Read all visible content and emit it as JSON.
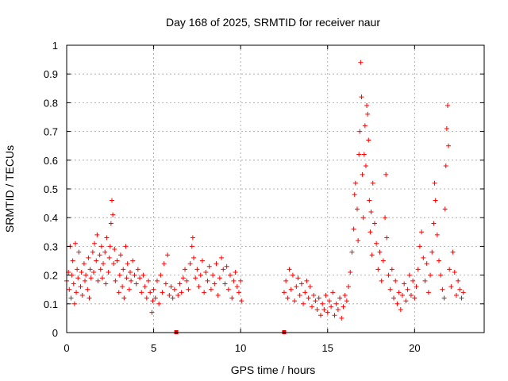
{
  "chart_data": {
    "type": "scatter",
    "title": "Day 168 of 2025, SRMTID for receiver naur",
    "xlabel": "GPS time / hours",
    "ylabel": "SRMTID / TECUs",
    "xlim": [
      0,
      24
    ],
    "ylim": [
      0,
      1
    ],
    "xticks": [
      "0",
      "5",
      "10",
      "15",
      "20"
    ],
    "xtick_values": [
      0,
      5,
      10,
      15,
      20
    ],
    "yticks": [
      "0",
      "0.1",
      "0.2",
      "0.3",
      "0.4",
      "0.5",
      "0.6",
      "0.7",
      "0.8",
      "0.9",
      "1"
    ],
    "ytick_values": [
      0,
      0.1,
      0.2,
      0.3,
      0.4,
      0.5,
      0.6,
      0.7,
      0.8,
      0.9,
      1.0
    ],
    "grid": true,
    "marker": "+",
    "color": "#ff0000",
    "zero_markers": [
      {
        "x": 6.3,
        "y": 0
      },
      {
        "x": 12.5,
        "y": 0
      }
    ],
    "series": [
      {
        "name": "SRMTID",
        "points": [
          [
            0.0,
            0.18
          ],
          [
            0.1,
            0.21
          ],
          [
            0.15,
            0.15
          ],
          [
            0.2,
            0.3
          ],
          [
            0.25,
            0.12
          ],
          [
            0.3,
            0.2
          ],
          [
            0.35,
            0.25
          ],
          [
            0.4,
            0.17
          ],
          [
            0.45,
            0.1
          ],
          [
            0.5,
            0.31
          ],
          [
            0.55,
            0.14
          ],
          [
            0.6,
            0.22
          ],
          [
            0.65,
            0.19
          ],
          [
            0.7,
            0.28
          ],
          [
            0.8,
            0.16
          ],
          [
            0.85,
            0.21
          ],
          [
            0.9,
            0.13
          ],
          [
            1.0,
            0.24
          ],
          [
            1.05,
            0.18
          ],
          [
            1.1,
            0.2
          ],
          [
            1.2,
            0.15
          ],
          [
            1.25,
            0.26
          ],
          [
            1.3,
            0.12
          ],
          [
            1.35,
            0.22
          ],
          [
            1.4,
            0.19
          ],
          [
            1.5,
            0.28
          ],
          [
            1.55,
            0.21
          ],
          [
            1.6,
            0.31
          ],
          [
            1.7,
            0.25
          ],
          [
            1.75,
            0.34
          ],
          [
            1.8,
            0.18
          ],
          [
            1.9,
            0.27
          ],
          [
            1.95,
            0.22
          ],
          [
            2.0,
            0.3
          ],
          [
            2.05,
            0.19
          ],
          [
            2.1,
            0.24
          ],
          [
            2.2,
            0.28
          ],
          [
            2.25,
            0.17
          ],
          [
            2.3,
            0.33
          ],
          [
            2.4,
            0.21
          ],
          [
            2.45,
            0.26
          ],
          [
            2.5,
            0.3
          ],
          [
            2.55,
            0.38
          ],
          [
            2.6,
            0.46
          ],
          [
            2.65,
            0.41
          ],
          [
            2.7,
            0.24
          ],
          [
            2.75,
            0.29
          ],
          [
            2.8,
            0.18
          ],
          [
            2.9,
            0.25
          ],
          [
            3.0,
            0.14
          ],
          [
            3.05,
            0.2
          ],
          [
            3.1,
            0.27
          ],
          [
            3.2,
            0.16
          ],
          [
            3.25,
            0.22
          ],
          [
            3.3,
            0.12
          ],
          [
            3.4,
            0.3
          ],
          [
            3.45,
            0.19
          ],
          [
            3.5,
            0.24
          ],
          [
            3.6,
            0.15
          ],
          [
            3.65,
            0.21
          ],
          [
            3.7,
            0.18
          ],
          [
            3.8,
            0.25
          ],
          [
            3.9,
            0.2
          ],
          [
            4.0,
            0.17
          ],
          [
            4.1,
            0.22
          ],
          [
            4.2,
            0.19
          ],
          [
            4.3,
            0.14
          ],
          [
            4.4,
            0.2
          ],
          [
            4.5,
            0.16
          ],
          [
            4.6,
            0.12
          ],
          [
            4.7,
            0.18
          ],
          [
            4.8,
            0.14
          ],
          [
            4.9,
            0.07
          ],
          [
            4.95,
            0.11
          ],
          [
            5.0,
            0.15
          ],
          [
            5.1,
            0.12
          ],
          [
            5.2,
            0.18
          ],
          [
            5.3,
            0.1
          ],
          [
            5.4,
            0.2
          ],
          [
            5.5,
            0.14
          ],
          [
            5.6,
            0.24
          ],
          [
            5.7,
            0.17
          ],
          [
            5.8,
            0.27
          ],
          [
            5.9,
            0.13
          ],
          [
            6.0,
            0.16
          ],
          [
            6.1,
            0.12
          ],
          [
            6.2,
            0.15
          ],
          [
            6.4,
            0.13
          ],
          [
            6.5,
            0.17
          ],
          [
            6.6,
            0.14
          ],
          [
            6.7,
            0.19
          ],
          [
            6.8,
            0.22
          ],
          [
            6.9,
            0.18
          ],
          [
            7.0,
            0.15
          ],
          [
            7.1,
            0.24
          ],
          [
            7.2,
            0.3
          ],
          [
            7.25,
            0.33
          ],
          [
            7.3,
            0.26
          ],
          [
            7.4,
            0.19
          ],
          [
            7.5,
            0.22
          ],
          [
            7.6,
            0.16
          ],
          [
            7.7,
            0.2
          ],
          [
            7.8,
            0.25
          ],
          [
            7.9,
            0.14
          ],
          [
            8.0,
            0.21
          ],
          [
            8.1,
            0.18
          ],
          [
            8.2,
            0.23
          ],
          [
            8.3,
            0.15
          ],
          [
            8.4,
            0.2
          ],
          [
            8.5,
            0.17
          ],
          [
            8.6,
            0.24
          ],
          [
            8.7,
            0.13
          ],
          [
            8.8,
            0.19
          ],
          [
            8.9,
            0.26
          ],
          [
            9.0,
            0.22
          ],
          [
            9.1,
            0.17
          ],
          [
            9.2,
            0.23
          ],
          [
            9.3,
            0.15
          ],
          [
            9.4,
            0.2
          ],
          [
            9.5,
            0.12
          ],
          [
            9.6,
            0.18
          ],
          [
            9.7,
            0.21
          ],
          [
            9.8,
            0.16
          ],
          [
            9.9,
            0.14
          ],
          [
            10.0,
            0.18
          ],
          [
            10.05,
            0.11
          ],
          [
            12.5,
            0.14
          ],
          [
            12.6,
            0.18
          ],
          [
            12.7,
            0.12
          ],
          [
            12.8,
            0.22
          ],
          [
            12.9,
            0.15
          ],
          [
            13.0,
            0.2
          ],
          [
            13.1,
            0.11
          ],
          [
            13.2,
            0.16
          ],
          [
            13.3,
            0.19
          ],
          [
            13.4,
            0.13
          ],
          [
            13.5,
            0.17
          ],
          [
            13.6,
            0.1
          ],
          [
            13.7,
            0.14
          ],
          [
            13.8,
            0.18
          ],
          [
            13.9,
            0.12
          ],
          [
            14.0,
            0.16
          ],
          [
            14.1,
            0.09
          ],
          [
            14.2,
            0.13
          ],
          [
            14.3,
            0.11
          ],
          [
            14.4,
            0.08
          ],
          [
            14.5,
            0.12
          ],
          [
            14.6,
            0.06
          ],
          [
            14.7,
            0.1
          ],
          [
            14.8,
            0.08
          ],
          [
            14.9,
            0.13
          ],
          [
            15.0,
            0.07
          ],
          [
            15.1,
            0.11
          ],
          [
            15.2,
            0.09
          ],
          [
            15.3,
            0.14
          ],
          [
            15.4,
            0.06
          ],
          [
            15.5,
            0.1
          ],
          [
            15.6,
            0.08
          ],
          [
            15.7,
            0.12
          ],
          [
            15.8,
            0.05
          ],
          [
            15.9,
            0.09
          ],
          [
            16.0,
            0.13
          ],
          [
            16.1,
            0.11
          ],
          [
            16.2,
            0.16
          ],
          [
            16.3,
            0.21
          ],
          [
            16.4,
            0.28
          ],
          [
            16.5,
            0.36
          ],
          [
            16.55,
            0.48
          ],
          [
            16.6,
            0.52
          ],
          [
            16.7,
            0.43
          ],
          [
            16.75,
            0.32
          ],
          [
            16.8,
            0.62
          ],
          [
            16.85,
            0.7
          ],
          [
            16.9,
            0.94
          ],
          [
            16.95,
            0.82
          ],
          [
            17.0,
            0.55
          ],
          [
            17.05,
            0.4
          ],
          [
            17.1,
            0.62
          ],
          [
            17.15,
            0.72
          ],
          [
            17.2,
            0.58
          ],
          [
            17.25,
            0.79
          ],
          [
            17.3,
            0.76
          ],
          [
            17.35,
            0.67
          ],
          [
            17.4,
            0.46
          ],
          [
            17.45,
            0.35
          ],
          [
            17.5,
            0.42
          ],
          [
            17.55,
            0.27
          ],
          [
            17.6,
            0.52
          ],
          [
            17.7,
            0.38
          ],
          [
            17.8,
            0.31
          ],
          [
            17.9,
            0.22
          ],
          [
            18.0,
            0.28
          ],
          [
            18.1,
            0.18
          ],
          [
            18.2,
            0.25
          ],
          [
            18.3,
            0.4
          ],
          [
            18.35,
            0.55
          ],
          [
            18.4,
            0.33
          ],
          [
            18.5,
            0.2
          ],
          [
            18.6,
            0.15
          ],
          [
            18.7,
            0.22
          ],
          [
            18.8,
            0.12
          ],
          [
            18.9,
            0.18
          ],
          [
            19.0,
            0.1
          ],
          [
            19.1,
            0.14
          ],
          [
            19.2,
            0.08
          ],
          [
            19.3,
            0.13
          ],
          [
            19.4,
            0.17
          ],
          [
            19.5,
            0.11
          ],
          [
            19.6,
            0.15
          ],
          [
            19.7,
            0.2
          ],
          [
            19.8,
            0.13
          ],
          [
            19.9,
            0.18
          ],
          [
            20.0,
            0.12
          ],
          [
            20.1,
            0.16
          ],
          [
            20.2,
            0.22
          ],
          [
            20.3,
            0.3
          ],
          [
            20.4,
            0.35
          ],
          [
            20.5,
            0.26
          ],
          [
            20.6,
            0.18
          ],
          [
            20.7,
            0.24
          ],
          [
            20.8,
            0.14
          ],
          [
            20.9,
            0.2
          ],
          [
            21.0,
            0.28
          ],
          [
            21.1,
            0.38
          ],
          [
            21.15,
            0.52
          ],
          [
            21.2,
            0.46
          ],
          [
            21.3,
            0.34
          ],
          [
            21.4,
            0.25
          ],
          [
            21.5,
            0.2
          ],
          [
            21.6,
            0.15
          ],
          [
            21.7,
            0.12
          ],
          [
            21.75,
            0.43
          ],
          [
            21.8,
            0.58
          ],
          [
            21.85,
            0.71
          ],
          [
            21.9,
            0.79
          ],
          [
            21.95,
            0.65
          ],
          [
            22.0,
            0.22
          ],
          [
            22.1,
            0.16
          ],
          [
            22.2,
            0.28
          ],
          [
            22.3,
            0.21
          ],
          [
            22.4,
            0.13
          ],
          [
            22.5,
            0.18
          ],
          [
            22.6,
            0.15
          ],
          [
            22.7,
            0.12
          ],
          [
            22.8,
            0.14
          ]
        ]
      }
    ]
  }
}
